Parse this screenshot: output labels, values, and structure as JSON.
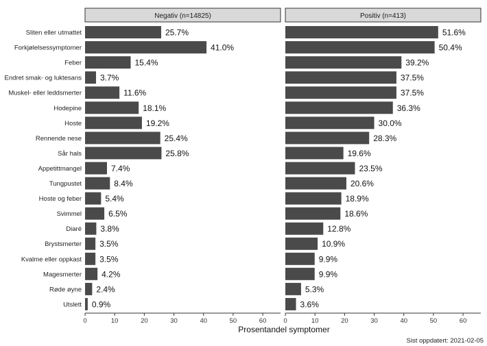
{
  "chart_data": {
    "type": "bar",
    "orientation": "horizontal",
    "categories": [
      "Sliten eller utmattet",
      "Forkjølelsessymptomer",
      "Feber",
      "Endret smak- og luktesans",
      "Muskel- eller leddsmerter",
      "Hodepine",
      "Hoste",
      "Rennende nese",
      "Sår hals",
      "Appetittmangel",
      "Tungpustet",
      "Hoste og feber",
      "Svimmel",
      "Diaré",
      "Brystsmerter",
      "Kvalme eller oppkast",
      "Magesmerter",
      "Røde øyne",
      "Utslett"
    ],
    "series": [
      {
        "name": "Negativ (n=14825)",
        "values": [
          25.7,
          41.0,
          15.4,
          3.7,
          11.6,
          18.1,
          19.2,
          25.4,
          25.8,
          7.4,
          8.4,
          5.4,
          6.5,
          3.8,
          3.5,
          3.5,
          4.2,
          2.4,
          0.9
        ],
        "labels": [
          "25.7%",
          "41.0%",
          "15.4%",
          "3.7%",
          "11.6%",
          "18.1%",
          "19.2%",
          "25.4%",
          "25.8%",
          "7.4%",
          "8.4%",
          "5.4%",
          "6.5%",
          "3.8%",
          "3.5%",
          "3.5%",
          "4.2%",
          "2.4%",
          "0.9%"
        ]
      },
      {
        "name": "Positiv (n=413)",
        "values": [
          51.6,
          50.4,
          39.2,
          37.5,
          37.5,
          36.3,
          30.0,
          28.3,
          19.6,
          23.5,
          20.6,
          18.9,
          18.6,
          12.8,
          10.9,
          9.9,
          9.9,
          5.3,
          3.6
        ],
        "labels": [
          "51.6%",
          "50.4%",
          "39.2%",
          "37.5%",
          "37.5%",
          "36.3%",
          "30.0%",
          "28.3%",
          "19.6%",
          "23.5%",
          "20.6%",
          "18.9%",
          "18.6%",
          "12.8%",
          "10.9%",
          "9.9%",
          "9.9%",
          "5.3%",
          "3.6%"
        ]
      }
    ],
    "xlabel": "Prosentandel symptomer",
    "ylabel": "",
    "xlim": [
      0,
      66
    ],
    "xticks": [
      "0",
      "10",
      "20",
      "30",
      "40",
      "50",
      "60"
    ],
    "xtick_values": [
      0,
      10,
      20,
      30,
      40,
      50,
      60
    ],
    "grid": false,
    "bar_color": "#4a4a4a",
    "strip_color": "#d9d9d9"
  },
  "footer": {
    "note": "Sist oppdatert: 2021-02-05"
  }
}
